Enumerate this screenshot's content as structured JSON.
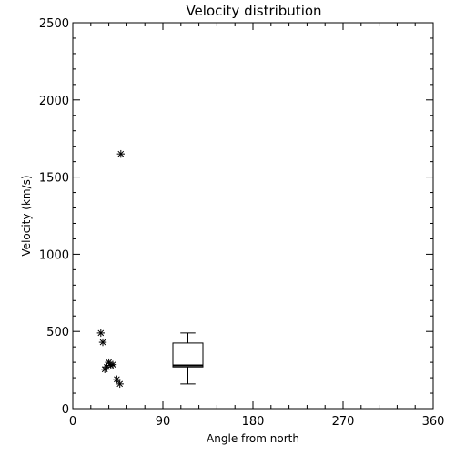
{
  "chart_data": {
    "type": "scatter",
    "title": "Velocity distribution",
    "xlabel": "Angle from north",
    "ylabel": "Velocity (km/s)",
    "xlim": [
      0,
      360
    ],
    "ylim": [
      0,
      2500
    ],
    "xticks": [
      0,
      90,
      180,
      270,
      360
    ],
    "yticks": [
      0,
      500,
      1000,
      1500,
      2000,
      2500
    ],
    "grid": false,
    "marker": "asterisk",
    "points": [
      {
        "x": 48,
        "y": 1650
      },
      {
        "x": 28,
        "y": 490
      },
      {
        "x": 30,
        "y": 430
      },
      {
        "x": 32,
        "y": 255
      },
      {
        "x": 34,
        "y": 270
      },
      {
        "x": 36,
        "y": 300
      },
      {
        "x": 38,
        "y": 280
      },
      {
        "x": 40,
        "y": 285
      },
      {
        "x": 44,
        "y": 190
      },
      {
        "x": 47,
        "y": 160
      }
    ],
    "boxplot": {
      "x": 115,
      "half_width": 15,
      "whisker_low": 160,
      "q1": 270,
      "median": 280,
      "q3": 425,
      "whisker_high": 490
    }
  }
}
